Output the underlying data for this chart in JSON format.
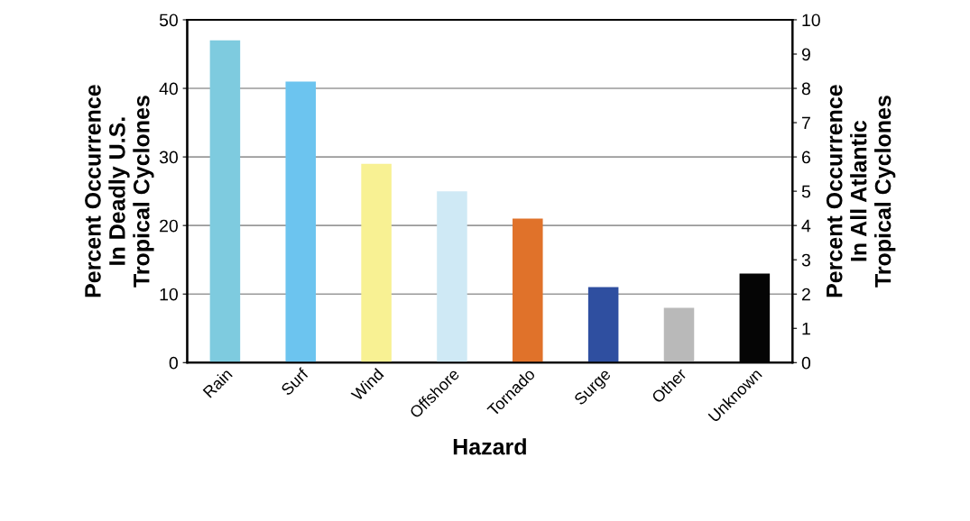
{
  "chart_data": {
    "type": "bar",
    "xlabel": "Hazard",
    "ylabel": "Percent Occurrence\nIn Deadly U.S.\nTropical Cyclones",
    "y2label": "Percent Occurrence\nIn All Atlantic\nTropical Cyclones",
    "categories": [
      "Rain",
      "Surf",
      "Wind",
      "Offshore",
      "Tornado",
      "Surge",
      "Other",
      "Unknown"
    ],
    "values": [
      47,
      41,
      29,
      25,
      21,
      11,
      8,
      13
    ],
    "colors": [
      "#7ecbdf",
      "#6cc4ef",
      "#f8f193",
      "#cfe9f5",
      "#e0722a",
      "#2f4fa0",
      "#b9b9b9",
      "#050505"
    ],
    "ylim": [
      0,
      50
    ],
    "yticks": [
      0,
      10,
      20,
      30,
      40,
      50
    ],
    "y2lim": [
      0,
      10
    ],
    "y2ticks": [
      0,
      1,
      2,
      3,
      4,
      5,
      6,
      7,
      8,
      9,
      10
    ],
    "grid": "y"
  }
}
